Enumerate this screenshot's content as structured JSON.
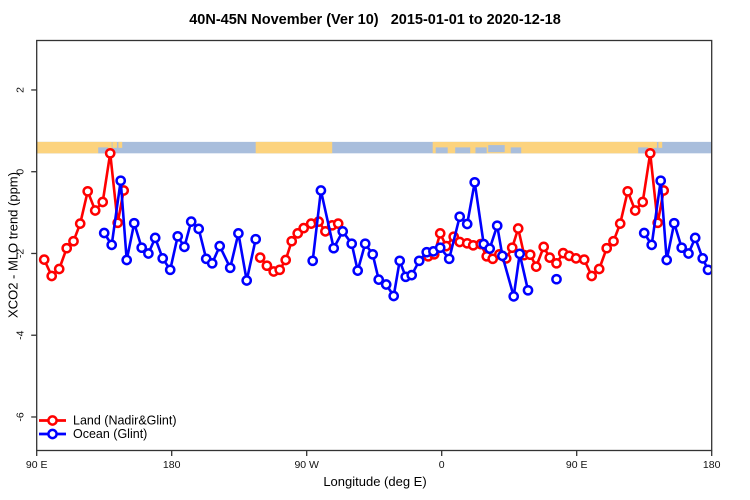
{
  "chart_data": {
    "type": "line",
    "title": "40N-45N November (Ver 10)   2015-01-01 to 2020-12-18",
    "xlabel": "Longitude (deg E)",
    "ylabel": "XCO2 - MLO trend (ppm)",
    "xlim": [
      90,
      540
    ],
    "ylim": [
      -6.82,
      3.21
    ],
    "grid": false,
    "legend_position": "bottom-left",
    "axis_color": "#333333",
    "x_ticks": [
      {
        "lon": 90,
        "label": "90 E"
      },
      {
        "lon": 180,
        "label": "180"
      },
      {
        "lon": 270,
        "label": "90 W"
      },
      {
        "lon": 360,
        "label": "0"
      },
      {
        "lon": 450,
        "label": "90 E"
      },
      {
        "lon": 540,
        "label": "180"
      }
    ],
    "y_ticks": [
      {
        "val": 2,
        "label": "2"
      },
      {
        "val": 0,
        "label": "0"
      },
      {
        "val": -2,
        "label": "-2"
      },
      {
        "val": -4,
        "label": "-4"
      },
      {
        "val": -6,
        "label": "-6"
      }
    ],
    "land_ocean_band": {
      "value_range": [
        0.45,
        0.73
      ],
      "ocean_color": "#a9bedc",
      "land_color": "#fcd37e",
      "land_segments": [
        [
          90,
          140
        ],
        [
          236,
          287
        ],
        [
          354,
          501
        ]
      ],
      "land_patches_upper": [
        [
          140.5,
          143.5
        ],
        [
          144.5,
          147
        ],
        [
          500.5,
          503.5
        ],
        [
          504.5,
          507
        ]
      ],
      "sea_patches_lower": [
        [
          131,
          137.5
        ],
        [
          356,
          364
        ],
        [
          369,
          379
        ],
        [
          382.5,
          390
        ],
        [
          406,
          413
        ],
        [
          491,
          497.5
        ]
      ],
      "sea_patches_mid": [
        [
          391,
          402
        ]
      ]
    },
    "series": [
      {
        "name": "Land (Nadir&Glint)",
        "color": "#ff0000",
        "chains": [
          [
            [
              95,
              -2.15
            ],
            [
              100,
              -2.55
            ],
            [
              105,
              -2.38
            ],
            [
              110,
              -1.87
            ],
            [
              114.5,
              -1.7
            ],
            [
              119,
              -1.27
            ],
            [
              124,
              -0.48
            ],
            [
              129,
              -0.95
            ],
            [
              134,
              -0.74
            ],
            [
              139,
              0.45
            ],
            [
              144,
              -1.25
            ],
            [
              148,
              -0.46
            ]
          ],
          [
            [
              239,
              -2.1
            ],
            [
              243.5,
              -2.3
            ],
            [
              248,
              -2.44
            ],
            [
              252,
              -2.4
            ],
            [
              256,
              -2.16
            ],
            [
              260,
              -1.7
            ],
            [
              264,
              -1.51
            ],
            [
              268,
              -1.38
            ],
            [
              273,
              -1.27
            ],
            [
              278,
              -1.22
            ],
            [
              282.5,
              -1.46
            ],
            [
              287,
              -1.31
            ],
            [
              291,
              -1.27
            ]
          ],
          [
            [
              351,
              -2.07
            ],
            [
              355,
              -2.02
            ],
            [
              359,
              -1.51
            ],
            [
              363,
              -1.82
            ],
            [
              368,
              -1.59
            ],
            [
              372,
              -1.72
            ],
            [
              377,
              -1.75
            ],
            [
              381,
              -1.8
            ],
            [
              386,
              -1.77
            ],
            [
              390,
              -2.07
            ],
            [
              394,
              -2.13
            ],
            [
              398.5,
              -2.02
            ],
            [
              403,
              -2.12
            ],
            [
              407,
              -1.86
            ],
            [
              411,
              -1.39
            ],
            [
              415,
              -2.04
            ],
            [
              419,
              -2.03
            ],
            [
              423,
              -2.32
            ],
            [
              428,
              -1.84
            ],
            [
              432,
              -2.1
            ],
            [
              436.5,
              -2.24
            ],
            [
              441,
              -1.99
            ],
            [
              445,
              -2.06
            ],
            [
              449.5,
              -2.12
            ],
            [
              455,
              -2.15
            ],
            [
              460,
              -2.55
            ],
            [
              465,
              -2.38
            ],
            [
              470,
              -1.87
            ],
            [
              474.5,
              -1.7
            ],
            [
              479,
              -1.27
            ],
            [
              484,
              -0.48
            ],
            [
              489,
              -0.95
            ],
            [
              494,
              -0.74
            ],
            [
              499,
              0.45
            ],
            [
              504,
              -1.25
            ],
            [
              508,
              -0.46
            ]
          ]
        ]
      },
      {
        "name": "Ocean (Glint)",
        "color": "#0000ff",
        "chains": [
          [
            [
              135,
              -1.5
            ],
            [
              140,
              -1.79
            ],
            [
              146,
              -0.22
            ],
            [
              150,
              -2.16
            ],
            [
              155,
              -1.26
            ],
            [
              160,
              -1.86
            ],
            [
              164.5,
              -2.0
            ],
            [
              169,
              -1.62
            ],
            [
              174,
              -2.12
            ],
            [
              179,
              -2.4
            ],
            [
              184,
              -1.58
            ],
            [
              188.5,
              -1.84
            ],
            [
              193,
              -1.22
            ],
            [
              198,
              -1.4
            ],
            [
              203,
              -2.13
            ],
            [
              207,
              -2.24
            ],
            [
              212,
              -1.82
            ],
            [
              219,
              -2.35
            ],
            [
              224.5,
              -1.51
            ],
            [
              230,
              -2.66
            ],
            [
              236,
              -1.65
            ]
          ],
          [
            [
              274,
              -2.18
            ],
            [
              279.5,
              -0.46
            ],
            [
              288,
              -1.87
            ],
            [
              294,
              -1.46
            ],
            [
              300,
              -1.76
            ],
            [
              304,
              -2.42
            ],
            [
              309,
              -1.76
            ],
            [
              314,
              -2.02
            ],
            [
              318,
              -2.64
            ],
            [
              323,
              -2.76
            ],
            [
              328,
              -3.04
            ],
            [
              332,
              -2.18
            ],
            [
              336,
              -2.57
            ],
            [
              340,
              -2.53
            ],
            [
              345,
              -2.18
            ],
            [
              350,
              -1.97
            ],
            [
              354.5,
              -1.95
            ],
            [
              359,
              -1.86
            ],
            [
              365,
              -2.13
            ],
            [
              372,
              -1.1
            ],
            [
              377,
              -1.28
            ],
            [
              382,
              -0.26
            ],
            [
              388,
              -1.77
            ],
            [
              392,
              -1.88
            ],
            [
              397,
              -1.32
            ],
            [
              400.5,
              -2.06
            ],
            [
              408,
              -3.05
            ],
            [
              412,
              -2.01
            ],
            [
              417.5,
              -2.9
            ]
          ],
          [
            [
              436.5,
              -2.63
            ]
          ],
          [
            [
              495,
              -1.5
            ],
            [
              500,
              -1.79
            ],
            [
              506,
              -0.22
            ],
            [
              510,
              -2.16
            ],
            [
              515,
              -1.26
            ],
            [
              520,
              -1.86
            ],
            [
              524.5,
              -2.0
            ],
            [
              529,
              -1.62
            ],
            [
              534,
              -2.12
            ],
            [
              537.5,
              -2.4
            ]
          ]
        ]
      }
    ]
  }
}
